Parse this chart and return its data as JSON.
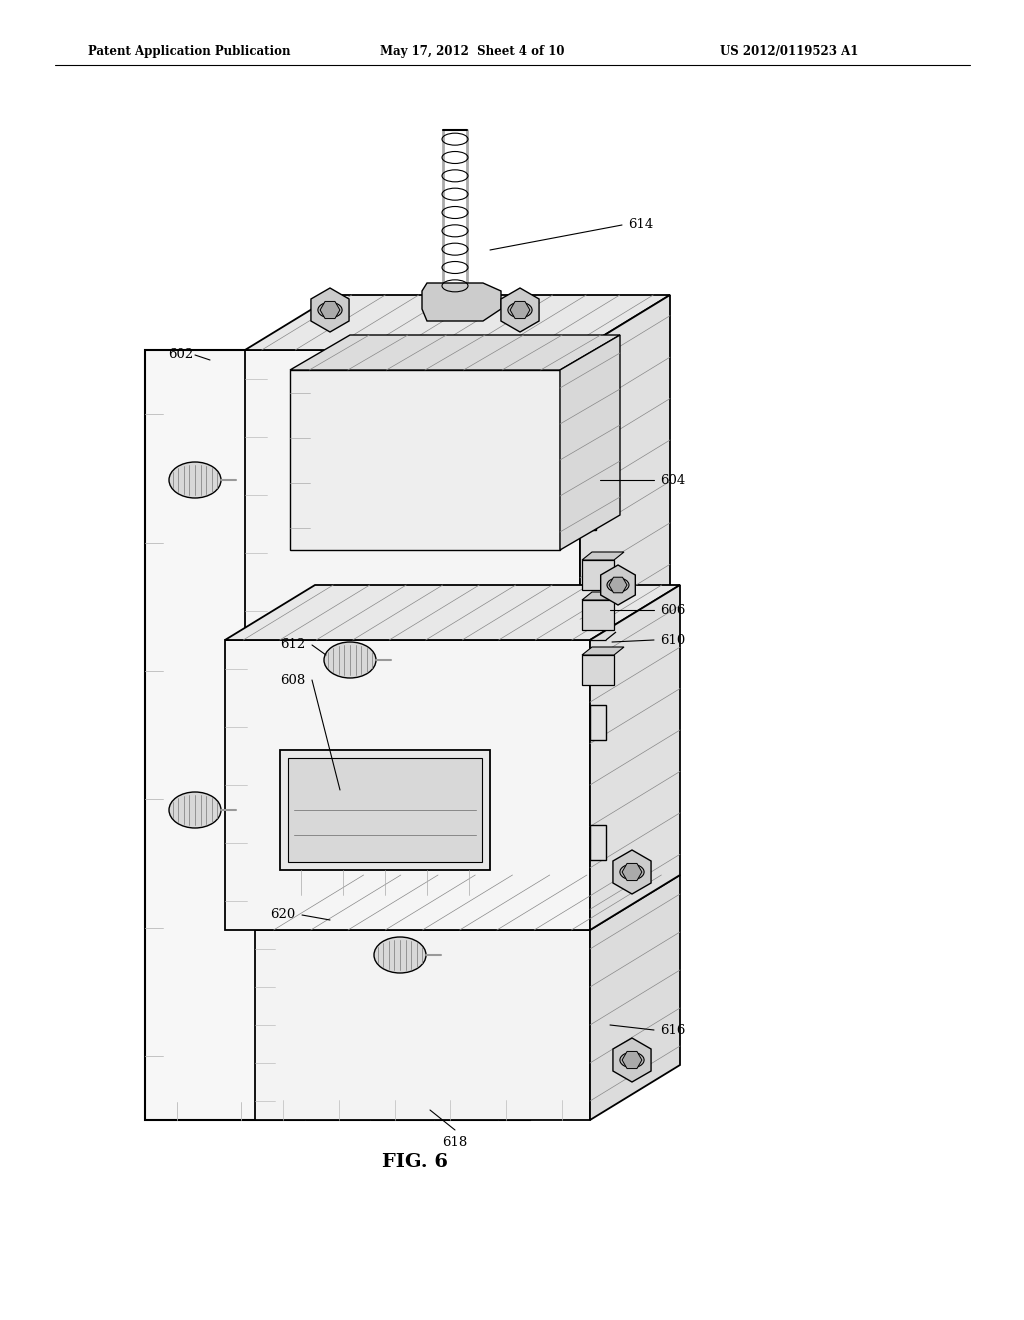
{
  "bg_color": "#ffffff",
  "line_color": "#000000",
  "header_left": "Patent Application Publication",
  "header_mid": "May 17, 2012  Sheet 4 of 10",
  "header_right": "US 2012/0119523 A1",
  "figure_label": "FIG. 6",
  "fig_width": 10.24,
  "fig_height": 13.2,
  "dpi": 100
}
